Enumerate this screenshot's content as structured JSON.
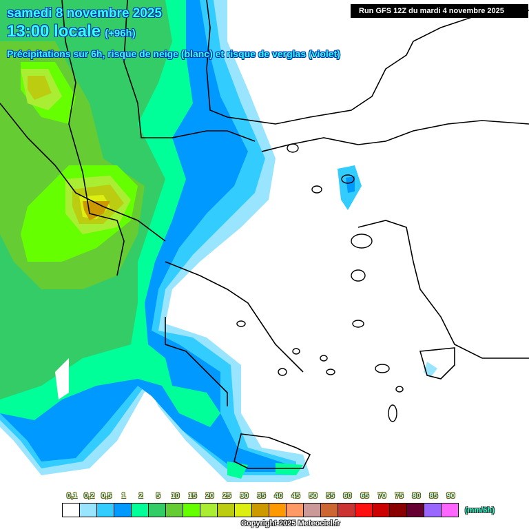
{
  "header": {
    "date": "samedi 8 novembre 2025",
    "time": "13:00 locale",
    "lead": "(+96h)",
    "description": "Précipitations sur 6h, risque de neige (blanc) et risque de verglas (violet)",
    "run": "Run GFS 12Z du mardi 4 novembre 2025"
  },
  "legend": {
    "unit": "(mm/6h)",
    "labels": [
      "0,1",
      "0,2",
      "0,5",
      "1",
      "2",
      "5",
      "10",
      "15",
      "20",
      "25",
      "30",
      "35",
      "40",
      "45",
      "50",
      "55",
      "60",
      "65",
      "70",
      "75",
      "80",
      "85",
      "90"
    ],
    "colors": [
      "#ffffff",
      "#99e5ff",
      "#33ccff",
      "#0099ff",
      "#00ff99",
      "#33cc66",
      "#66cc33",
      "#66ff00",
      "#aaee33",
      "#bbcc11",
      "#ddee11",
      "#cc9900",
      "#ff9900",
      "#ff9966",
      "#cc9999",
      "#cc6633",
      "#cc3333",
      "#ff1111",
      "#cc0000",
      "#880000",
      "#660033",
      "#9966ff",
      "#ff66ff"
    ]
  },
  "map": {
    "region": "Greece / Aegean Sea / western Turkey",
    "max_precip_zone": "Albania–Greece border (Epirus), 35–40 mm/6h",
    "light_precip_zone": "Eastern Aegean coast, Rhodes area"
  },
  "footer": {
    "copyright": "Copyright 2025 Meteociel.fr"
  }
}
